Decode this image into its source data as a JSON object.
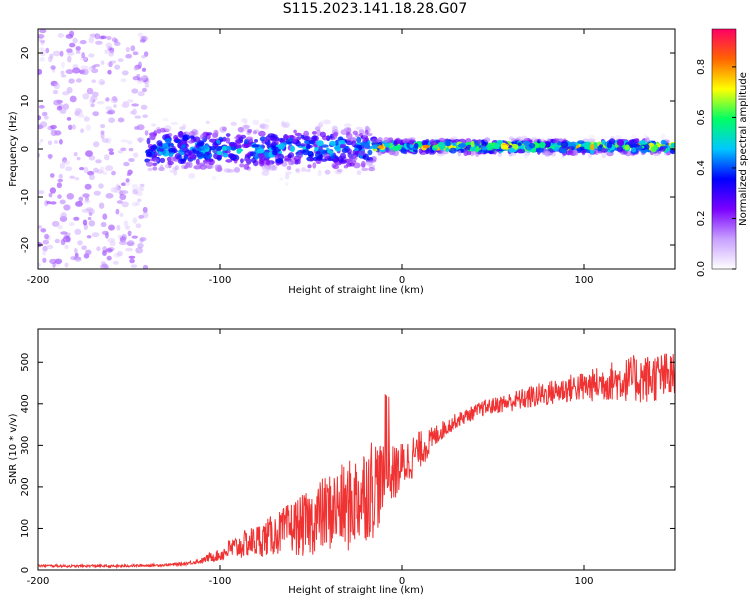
{
  "title": "S115.2023.141.18.28.G07",
  "colors": {
    "series": "#f03232",
    "axis": "#000000",
    "background": "#ffffff"
  },
  "chart_data": [
    {
      "type": "heatmap",
      "xlabel": "Height of straight line (km)",
      "ylabel": "Frequency (Hz)",
      "xlim": [
        -200,
        150
      ],
      "ylim": [
        -25,
        25
      ],
      "xticks": [
        -200,
        -100,
        0,
        100
      ],
      "yticks": [
        -20,
        -10,
        0,
        10,
        20
      ],
      "colorbar": {
        "label": "Normalized spectral amplitude",
        "range": [
          0,
          0.95
        ],
        "ticks": [
          "0.0",
          "0.2",
          "0.4",
          "0.6",
          "0.8"
        ],
        "tick_values": [
          0.0,
          0.2,
          0.4,
          0.6,
          0.8
        ],
        "colormap": [
          "#ffffff",
          "#c8a0ff",
          "#7a00ff",
          "#0000ff",
          "#00c8ff",
          "#00ff64",
          "#ffff00",
          "#ff6400",
          "#ff0064"
        ]
      },
      "bands": [
        {
          "x": [
            -200,
            -140
          ],
          "center_hz": 0,
          "spread_hz": 25,
          "amplitude": 0.15,
          "description_level": "scattered"
        },
        {
          "x": [
            -140,
            -15
          ],
          "center_hz": 0,
          "spread_hz": 4,
          "amplitude": 0.35
        },
        {
          "x": [
            -15,
            150
          ],
          "center_hz": 0.5,
          "spread_hz": 1.2,
          "amplitude": 0.55
        }
      ]
    },
    {
      "type": "line",
      "xlabel": "Height of straight line (km)",
      "ylabel": "SNR (10 * v/v)",
      "xlim": [
        -200,
        150
      ],
      "ylim": [
        0,
        580
      ],
      "xticks": [
        -200,
        -100,
        0,
        100
      ],
      "yticks": [
        0,
        100,
        200,
        300,
        400,
        500
      ],
      "series": [
        {
          "x": [
            -200,
            -190,
            -180,
            -170,
            -160,
            -150,
            -140,
            -130,
            -120,
            -110,
            -105,
            -100,
            -95,
            -90,
            -85,
            -80,
            -75,
            -70,
            -65,
            -60,
            -55,
            -50,
            -45,
            -40,
            -35,
            -30,
            -25,
            -20,
            -15,
            -10,
            -5,
            0,
            5,
            10,
            15,
            20,
            25,
            30,
            35,
            40,
            45,
            50,
            55,
            60,
            65,
            70,
            75,
            80,
            85,
            90,
            95,
            100,
            105,
            110,
            115,
            120,
            125,
            130,
            135,
            140,
            145,
            150
          ],
          "values": [
            10,
            10,
            9,
            10,
            9,
            10,
            11,
            12,
            15,
            22,
            32,
            35,
            50,
            55,
            65,
            70,
            78,
            85,
            95,
            105,
            105,
            115,
            130,
            140,
            150,
            150,
            170,
            190,
            205,
            215,
            230,
            250,
            270,
            290,
            305,
            330,
            345,
            360,
            370,
            380,
            390,
            395,
            400,
            405,
            410,
            415,
            420,
            425,
            430,
            435,
            440,
            440,
            445,
            450,
            455,
            455,
            460,
            460,
            460,
            465,
            465,
            465
          ],
          "spread": [
            3,
            3,
            3,
            3,
            3,
            3,
            3,
            3,
            4,
            6,
            12,
            14,
            25,
            30,
            35,
            40,
            45,
            50,
            55,
            65,
            75,
            80,
            90,
            95,
            100,
            110,
            115,
            120,
            130,
            80,
            70,
            60,
            55,
            45,
            35,
            25,
            20,
            18,
            18,
            18,
            20,
            20,
            22,
            24,
            26,
            28,
            30,
            30,
            32,
            34,
            35,
            38,
            40,
            45,
            48,
            50,
            55,
            60,
            60,
            60,
            60,
            60
          ]
        }
      ]
    }
  ]
}
